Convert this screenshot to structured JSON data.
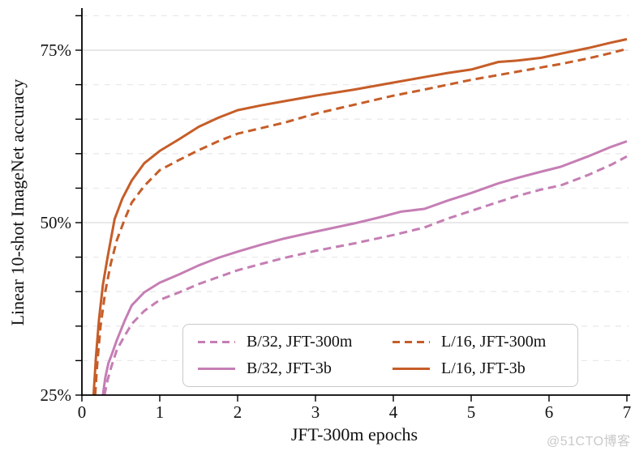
{
  "watermark": "@51CTO博客",
  "chart_data": {
    "type": "line",
    "title": "",
    "xlabel": "JFT-300m epochs",
    "ylabel": "Linear 10-shot ImageNet accuracy",
    "xlim": [
      0,
      7
    ],
    "ylim": [
      25,
      81.5
    ],
    "grid_on": true,
    "x_ticks": [
      {
        "value": 0,
        "label": "0"
      },
      {
        "value": 1,
        "label": "1"
      },
      {
        "value": 2,
        "label": "2"
      },
      {
        "value": 3,
        "label": "3"
      },
      {
        "value": 4,
        "label": "4"
      },
      {
        "value": 5,
        "label": "5"
      },
      {
        "value": 6,
        "label": "6"
      },
      {
        "value": 7,
        "label": "7"
      }
    ],
    "y_ticks_labeled": [
      {
        "value": 25,
        "label": "25%"
      },
      {
        "value": 50,
        "label": "50%"
      },
      {
        "value": 75,
        "label": "75%"
      }
    ],
    "y_ticks_minor": [
      30,
      35,
      40,
      45,
      55,
      60,
      65,
      70,
      80
    ],
    "grid": {
      "solid_at": [
        50,
        75
      ],
      "dashed_at": [
        30,
        35,
        40,
        45,
        55,
        60,
        65,
        70,
        80
      ]
    },
    "colors": {
      "pink": "#c57eb4",
      "orange": "#c65d28",
      "grid_solid": "#d9d9d9",
      "grid_dashed": "#e9e9e9",
      "axis": "#000000",
      "legend_border": "#c9c9c9"
    },
    "legend": {
      "position": "inside lower center-right",
      "display_order_note": "col1: B/32 JFT-300m, B/32 JFT-3b; col2: L/16 JFT-300m, L/16 JFT-3b"
    },
    "series": [
      {
        "id": "b32-jft300m",
        "name": "B/32, JFT-300m",
        "color": "#c57eb4",
        "style": "dashed",
        "points": [
          [
            0.29,
            25
          ],
          [
            0.33,
            27.2
          ],
          [
            0.38,
            29.2
          ],
          [
            0.45,
            31.6
          ],
          [
            0.55,
            33.6
          ],
          [
            0.64,
            35.3
          ],
          [
            0.8,
            37.2
          ],
          [
            1.0,
            38.8
          ],
          [
            1.25,
            39.9
          ],
          [
            1.5,
            41.1
          ],
          [
            1.75,
            42.1
          ],
          [
            2.0,
            43.1
          ],
          [
            2.3,
            44.0
          ],
          [
            2.6,
            44.9
          ],
          [
            3.0,
            45.9
          ],
          [
            3.5,
            47.0
          ],
          [
            4.0,
            48.2
          ],
          [
            4.4,
            49.3
          ],
          [
            4.7,
            50.6
          ],
          [
            5.0,
            51.7
          ],
          [
            5.35,
            53.0
          ],
          [
            5.6,
            53.9
          ],
          [
            5.9,
            54.8
          ],
          [
            6.15,
            55.4
          ],
          [
            6.5,
            56.9
          ],
          [
            6.8,
            58.4
          ],
          [
            7.0,
            59.6
          ]
        ]
      },
      {
        "id": "b32-jft3b",
        "name": "B/32, JFT-3b",
        "color": "#c57eb4",
        "style": "solid",
        "points": [
          [
            0.27,
            25
          ],
          [
            0.3,
            27.5
          ],
          [
            0.34,
            29.6
          ],
          [
            0.38,
            30.8
          ],
          [
            0.45,
            33.0
          ],
          [
            0.55,
            35.8
          ],
          [
            0.64,
            38.0
          ],
          [
            0.8,
            39.9
          ],
          [
            1.0,
            41.3
          ],
          [
            1.25,
            42.5
          ],
          [
            1.5,
            43.8
          ],
          [
            1.75,
            44.9
          ],
          [
            2.0,
            45.8
          ],
          [
            2.3,
            46.8
          ],
          [
            2.6,
            47.7
          ],
          [
            3.0,
            48.7
          ],
          [
            3.5,
            49.9
          ],
          [
            3.8,
            50.7
          ],
          [
            4.1,
            51.6
          ],
          [
            4.4,
            52.0
          ],
          [
            4.7,
            53.2
          ],
          [
            5.0,
            54.3
          ],
          [
            5.35,
            55.7
          ],
          [
            5.6,
            56.5
          ],
          [
            5.9,
            57.4
          ],
          [
            6.15,
            58.1
          ],
          [
            6.5,
            59.6
          ],
          [
            6.8,
            61.0
          ],
          [
            7.0,
            61.8
          ]
        ]
      },
      {
        "id": "l16-jft300m",
        "name": "L/16, JFT-300m",
        "color": "#c65d28",
        "style": "dashed",
        "points": [
          [
            0.17,
            25
          ],
          [
            0.2,
            30
          ],
          [
            0.24,
            35
          ],
          [
            0.3,
            40
          ],
          [
            0.37,
            44
          ],
          [
            0.45,
            47.5
          ],
          [
            0.55,
            50.5
          ],
          [
            0.64,
            52.9
          ],
          [
            0.8,
            55.3
          ],
          [
            1.0,
            57.6
          ],
          [
            1.25,
            59.1
          ],
          [
            1.5,
            60.5
          ],
          [
            1.75,
            61.8
          ],
          [
            2.0,
            62.9
          ],
          [
            2.3,
            63.7
          ],
          [
            2.6,
            64.5
          ],
          [
            3.0,
            65.8
          ],
          [
            3.5,
            67.1
          ],
          [
            4.0,
            68.4
          ],
          [
            4.4,
            69.3
          ],
          [
            4.7,
            70.0
          ],
          [
            5.0,
            70.7
          ],
          [
            5.35,
            71.4
          ],
          [
            5.6,
            71.9
          ],
          [
            5.9,
            72.5
          ],
          [
            6.15,
            73.0
          ],
          [
            6.5,
            73.8
          ],
          [
            6.8,
            74.6
          ],
          [
            7.0,
            75.2
          ]
        ]
      },
      {
        "id": "l16-jft3b",
        "name": "L/16, JFT-3b",
        "color": "#c65d28",
        "style": "solid",
        "points": [
          [
            0.15,
            25
          ],
          [
            0.18,
            30.5
          ],
          [
            0.22,
            36
          ],
          [
            0.27,
            41
          ],
          [
            0.33,
            45
          ],
          [
            0.42,
            50.5
          ],
          [
            0.52,
            53.5
          ],
          [
            0.64,
            56.1
          ],
          [
            0.8,
            58.6
          ],
          [
            1.0,
            60.4
          ],
          [
            1.25,
            62.1
          ],
          [
            1.5,
            63.9
          ],
          [
            1.75,
            65.2
          ],
          [
            2.0,
            66.3
          ],
          [
            2.3,
            67.0
          ],
          [
            2.6,
            67.6
          ],
          [
            3.0,
            68.4
          ],
          [
            3.5,
            69.3
          ],
          [
            4.0,
            70.3
          ],
          [
            4.4,
            71.1
          ],
          [
            4.7,
            71.7
          ],
          [
            5.0,
            72.2
          ],
          [
            5.35,
            73.3
          ],
          [
            5.6,
            73.5
          ],
          [
            5.9,
            73.9
          ],
          [
            6.15,
            74.5
          ],
          [
            6.5,
            75.3
          ],
          [
            6.8,
            76.1
          ],
          [
            7.0,
            76.6
          ]
        ]
      }
    ]
  }
}
